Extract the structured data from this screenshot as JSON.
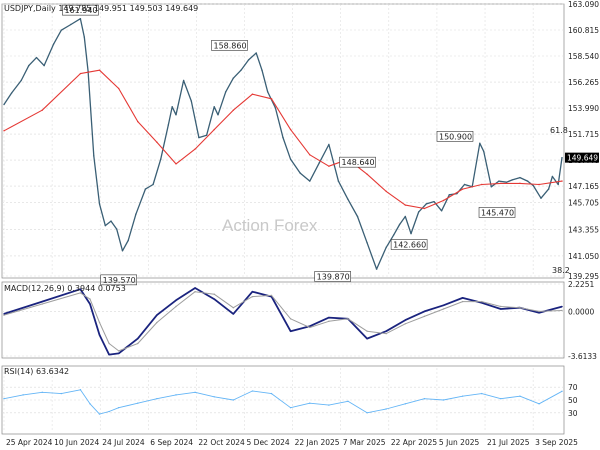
{
  "header": {
    "symbol_line": "USDJPY,Daily  149.785 149.951 149.503 149.649",
    "macd_line": "MACD(12,26,9) 0.3944 0.0753",
    "rsi_line": "RSI(14) 63.6342"
  },
  "watermark": "Action Forex",
  "colors": {
    "price_line": "#3a5f75",
    "sma": "#e53935",
    "macd": "#1a237e",
    "signal": "#9e9e9e",
    "rsi": "#64b5f6",
    "grid": "#d9d9d9",
    "price_tag_bg": "#000000"
  },
  "chart_data": [
    {
      "type": "line",
      "title": "USDJPY,Daily",
      "ohlc_current": {
        "open": 149.785,
        "high": 149.951,
        "low": 149.503,
        "close": 149.649
      },
      "ylim": [
        139.295,
        163.09
      ],
      "y_ticks": [
        163.09,
        160.815,
        158.54,
        156.265,
        153.99,
        151.715,
        149.44,
        147.165,
        145.705,
        143.355,
        141.05,
        139.295
      ],
      "y_tick_labels": [
        "163.090",
        "160.815",
        "158.540",
        "156.265",
        "153.990",
        "151.715",
        "149.440",
        "147.165",
        "145.705",
        "143.355",
        "141.050",
        "139.295"
      ],
      "x_tick_labels": [
        "25 Apr 2024",
        "10 Jun 2024",
        "24 Jul 2024",
        "6 Sep 2024",
        "22 Oct 2024",
        "5 Dec 2024",
        "22 Jan 2025",
        "7 Mar 2025",
        "22 Apr 2025",
        "5 Jun 2025",
        "21 Jul 2025",
        "3 Sep 2025"
      ],
      "current_price_label": "149.649",
      "series": [
        {
          "name": "USDJPY,Daily",
          "x": [
            0,
            4,
            9,
            13,
            17,
            21,
            26,
            30,
            35,
            40,
            42,
            44,
            47,
            50,
            53,
            56,
            59,
            62,
            65,
            69,
            74,
            78,
            82,
            86,
            88,
            90,
            94,
            98,
            102,
            106,
            110,
            112,
            116,
            120,
            124,
            128,
            132,
            135,
            138,
            142,
            146,
            150,
            155,
            160,
            165,
            170,
            175,
            180,
            185,
            190,
            195,
            200,
            204,
            207,
            210,
            213,
            217,
            221,
            225,
            229,
            233,
            237,
            241,
            245,
            249,
            251,
            255,
            259,
            263,
            266,
            270,
            274,
            277,
            281,
            285,
            287,
            290,
            292
          ],
          "y": [
            154.3,
            155.3,
            156.4,
            157.7,
            158.4,
            157.7,
            159.6,
            160.8,
            161.3,
            161.8,
            160.2,
            157.2,
            149.8,
            145.6,
            143.7,
            144.1,
            143.4,
            141.5,
            142.4,
            144.7,
            146.9,
            147.3,
            149.5,
            152.5,
            154.1,
            153.4,
            156.4,
            154.6,
            151.4,
            151.6,
            154.1,
            153.4,
            155.4,
            156.6,
            157.3,
            158.2,
            158.8,
            157.3,
            155.4,
            154.0,
            151.4,
            149.5,
            148.3,
            147.6,
            149.2,
            150.8,
            147.6,
            146.0,
            144.5,
            142.2,
            139.9,
            141.8,
            142.9,
            143.8,
            144.5,
            143.0,
            144.9,
            145.6,
            145.8,
            145.0,
            146.4,
            146.5,
            147.3,
            147.1,
            150.9,
            150.2,
            147.1,
            147.6,
            147.5,
            147.7,
            147.9,
            147.6,
            147.2,
            146.1,
            146.9,
            148.0,
            147.3,
            149.649
          ]
        },
        {
          "name": "SMA",
          "x": [
            0,
            20,
            40,
            50,
            60,
            70,
            80,
            90,
            100,
            110,
            120,
            130,
            140,
            150,
            160,
            170,
            180,
            190,
            200,
            210,
            220,
            230,
            240,
            250,
            260,
            270,
            280,
            292
          ],
          "y": [
            152.0,
            153.8,
            157.0,
            157.3,
            155.7,
            152.8,
            151.0,
            149.1,
            150.4,
            152.1,
            153.8,
            155.2,
            154.8,
            152.1,
            149.9,
            148.9,
            149.5,
            148.2,
            146.7,
            145.5,
            145.2,
            145.9,
            146.9,
            147.3,
            147.4,
            147.4,
            147.3,
            147.6
          ]
        }
      ],
      "annotations": [
        "161.940",
        "158.860",
        "150.900",
        "148.640",
        "145.470",
        "142.660",
        "139.870",
        "139.570",
        "61.8",
        "38.2"
      ]
    },
    {
      "type": "line",
      "title": "MACD(12,26,9) 0.3944 0.0753",
      "ylim": [
        -3.6133,
        2.2251
      ],
      "y_ticks": [
        2.2251,
        0.0,
        -3.6133
      ],
      "y_tick_labels": [
        "2.2251",
        "0.0000",
        "-3.6133"
      ],
      "series": [
        {
          "name": "MACD",
          "x": [
            0,
            20,
            40,
            45,
            50,
            55,
            60,
            70,
            80,
            90,
            100,
            110,
            120,
            130,
            140,
            150,
            160,
            170,
            180,
            190,
            200,
            210,
            220,
            230,
            240,
            250,
            260,
            270,
            280,
            292
          ],
          "y": [
            -0.2,
            0.8,
            1.8,
            0.6,
            -1.9,
            -3.5,
            -3.4,
            -2.2,
            -0.3,
            0.9,
            1.9,
            1.0,
            -0.2,
            1.6,
            1.2,
            -1.6,
            -1.2,
            -0.5,
            -0.6,
            -2.2,
            -1.6,
            -0.7,
            0.0,
            0.5,
            1.1,
            0.7,
            0.2,
            0.3,
            -0.1,
            0.3944
          ]
        },
        {
          "name": "Signal",
          "x": [
            0,
            20,
            40,
            45,
            50,
            55,
            60,
            70,
            80,
            90,
            100,
            110,
            120,
            130,
            140,
            150,
            160,
            170,
            180,
            190,
            200,
            210,
            220,
            230,
            240,
            250,
            260,
            270,
            280,
            292
          ],
          "y": [
            -0.3,
            0.6,
            1.5,
            1.0,
            -0.9,
            -2.6,
            -3.2,
            -2.6,
            -0.9,
            0.4,
            1.6,
            1.4,
            0.3,
            1.2,
            1.3,
            -0.6,
            -1.3,
            -0.8,
            -0.6,
            -1.6,
            -1.8,
            -1.0,
            -0.4,
            0.2,
            0.8,
            0.8,
            0.4,
            0.3,
            0.0,
            0.0753
          ]
        }
      ]
    },
    {
      "type": "line",
      "title": "RSI(14) 63.6342",
      "ylim": [
        0,
        100
      ],
      "y_ticks": [
        70,
        50,
        30
      ],
      "y_tick_labels": [
        "70",
        "50",
        "30"
      ],
      "series": [
        {
          "name": "RSI(14)",
          "x": [
            0,
            10,
            20,
            30,
            40,
            45,
            50,
            55,
            60,
            70,
            80,
            90,
            100,
            110,
            120,
            130,
            140,
            150,
            160,
            170,
            180,
            190,
            200,
            210,
            220,
            230,
            240,
            250,
            260,
            270,
            280,
            292
          ],
          "y": [
            52,
            58,
            62,
            60,
            66,
            44,
            28,
            32,
            38,
            45,
            52,
            58,
            62,
            55,
            50,
            64,
            60,
            38,
            45,
            42,
            48,
            30,
            36,
            44,
            52,
            50,
            56,
            60,
            52,
            56,
            44,
            63.6342
          ]
        }
      ]
    }
  ]
}
